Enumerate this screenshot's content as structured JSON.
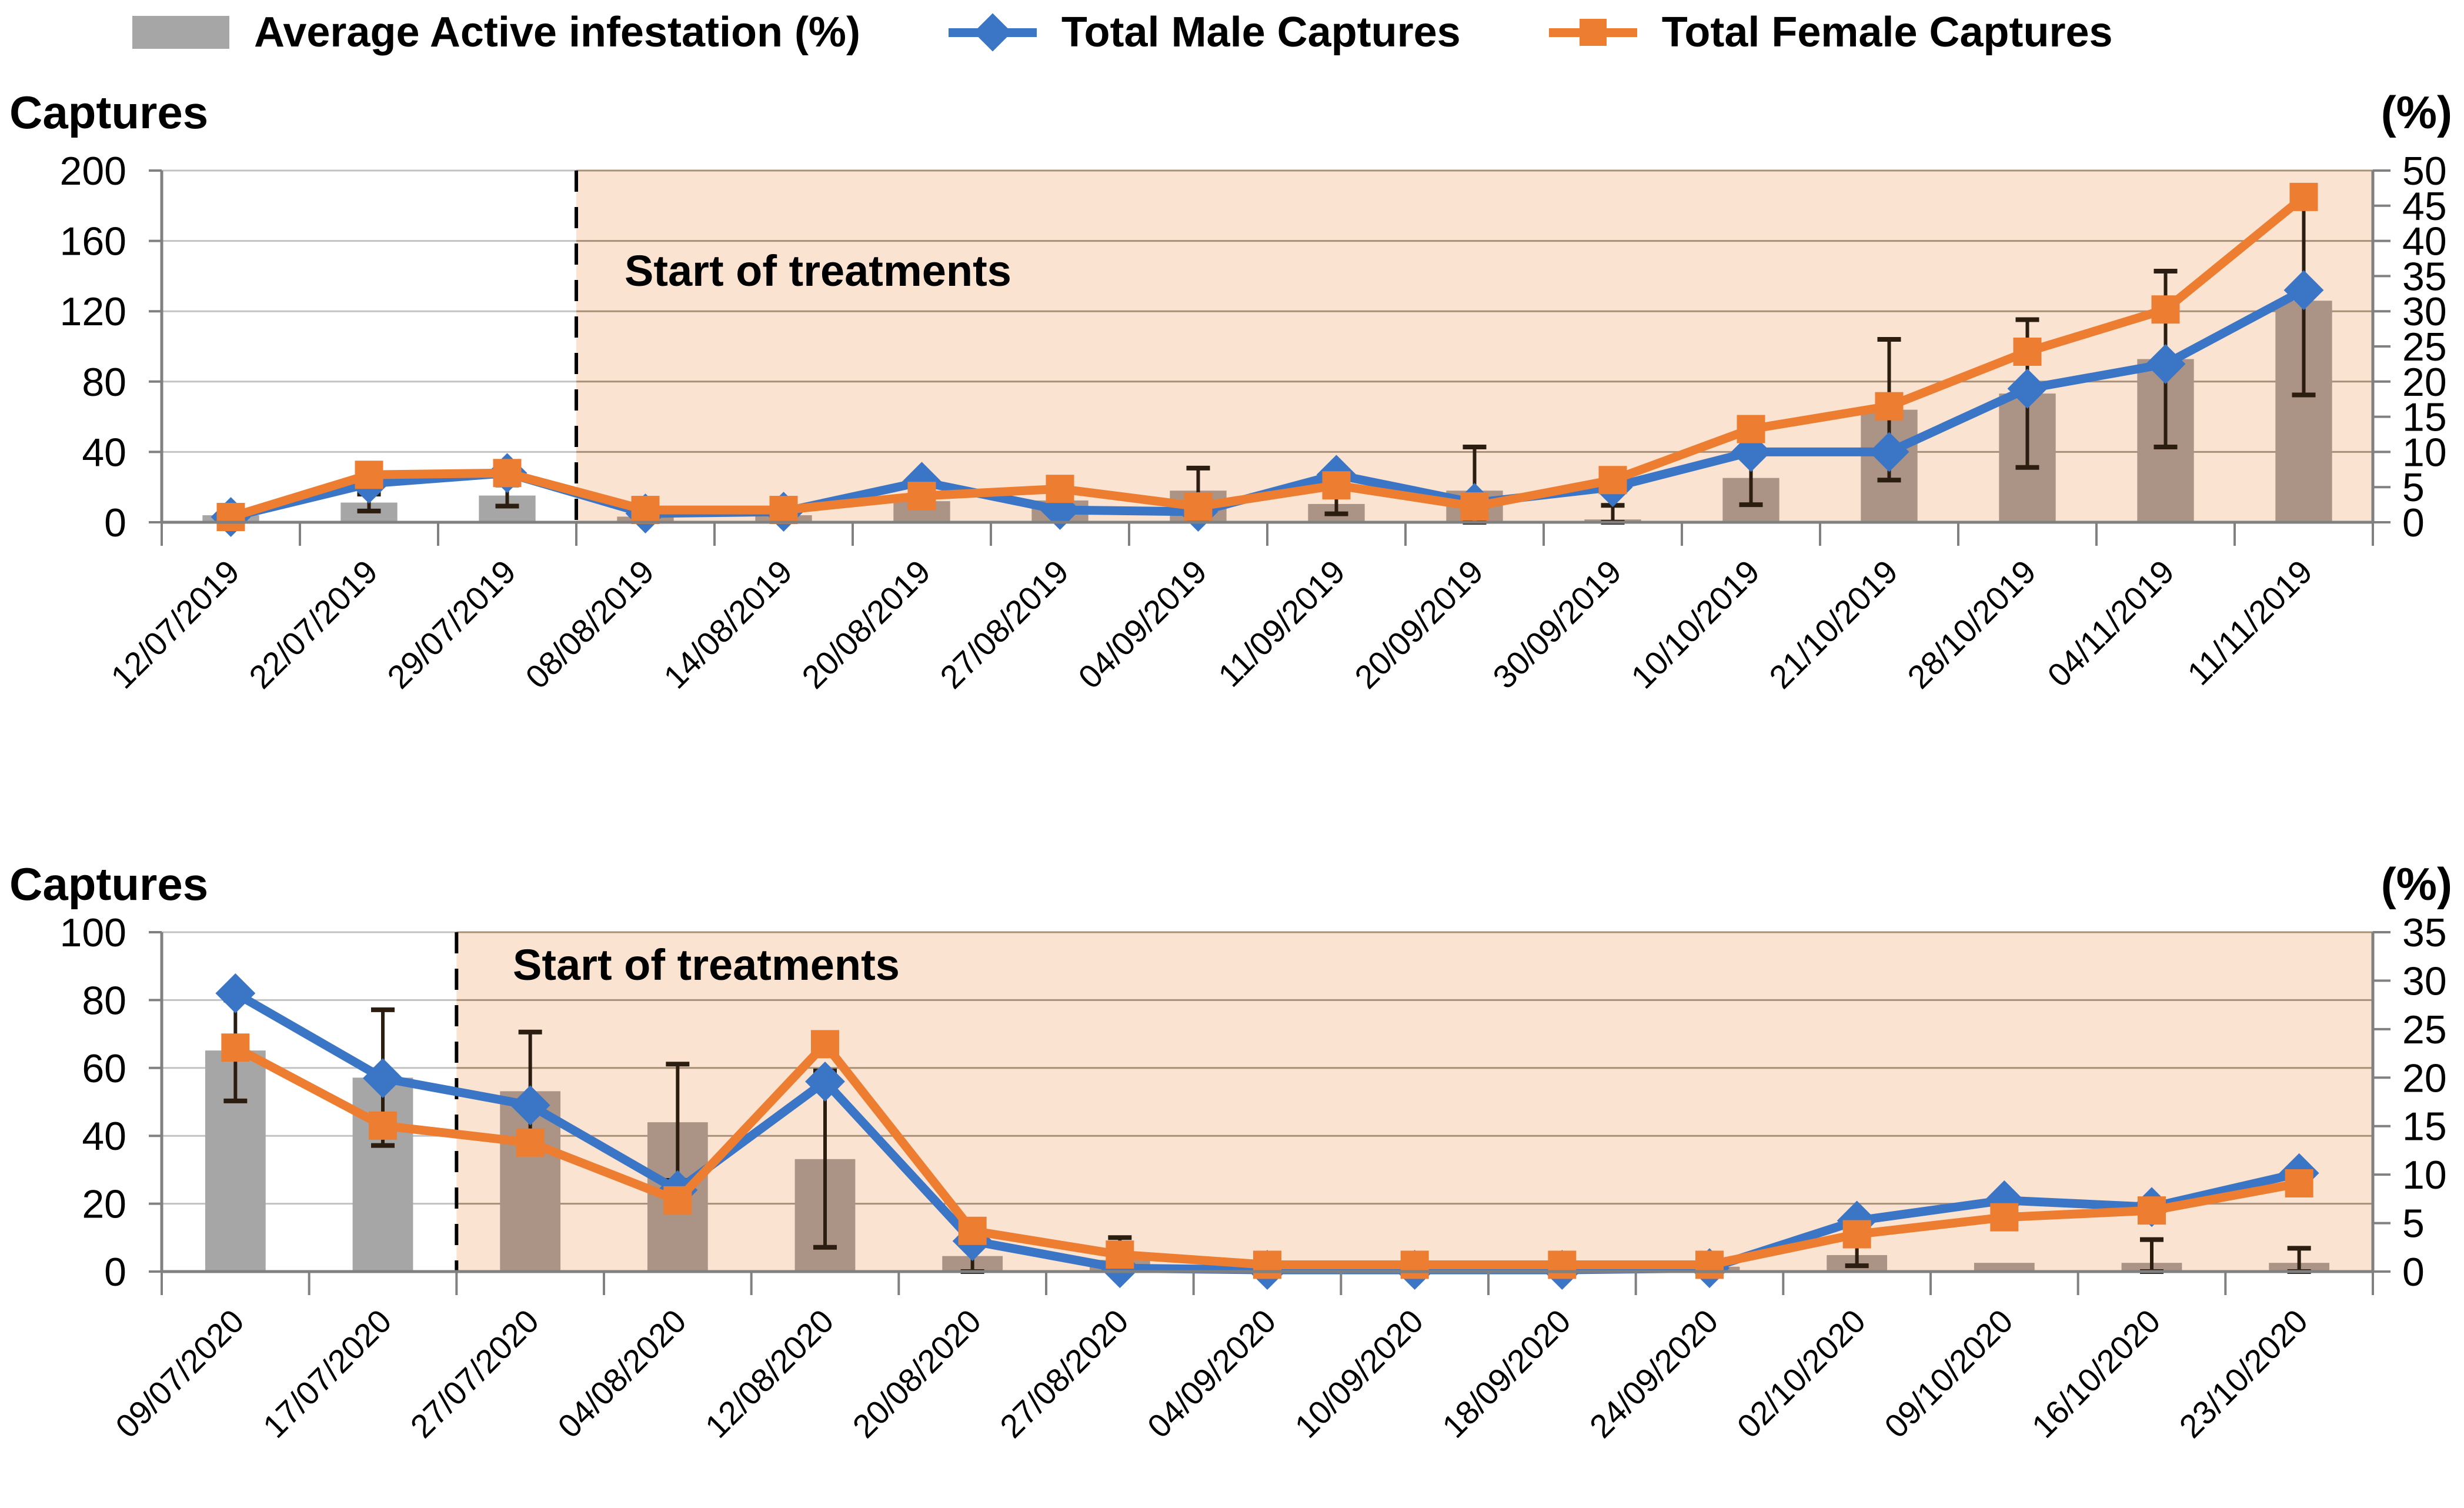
{
  "legend": {
    "items": [
      {
        "label": "Average Active infestation (%)",
        "swatch": "bar",
        "color": "#A6A6A6"
      },
      {
        "label": "Total Male Captures",
        "swatch": "line-diamond",
        "color": "#3B76C6"
      },
      {
        "label": "Total Female Captures",
        "swatch": "line-square",
        "color": "#ED7D31"
      }
    ]
  },
  "colors": {
    "bar_gray": "#A6A6A6",
    "bar_in_shade": "#AB9486",
    "male_blue": "#3B76C6",
    "female_orange": "#ED7D31",
    "shade_peach": "#FBE3D2",
    "gridline_plain": "#C3C3C3",
    "gridline_in_shade": "#A89078",
    "axis_line": "#808080",
    "error_bar": "#2B1D10",
    "dashed_line": "#000000"
  },
  "chart_data": [
    {
      "type": "bar+line combo",
      "left_axis": {
        "title": "Captures",
        "min": 0,
        "max": 200,
        "step": 40
      },
      "right_axis": {
        "title": "(%)",
        "min": 0,
        "max": 50,
        "step": 5
      },
      "annotation": "Start of treatments",
      "treatment_start_after_category": "29/07/2019",
      "categories": [
        "12/07/2019",
        "22/07/2019",
        "29/07/2019",
        "08/08/2019",
        "14/08/2019",
        "20/08/2019",
        "27/08/2019",
        "04/09/2019",
        "11/09/2019",
        "20/09/2019",
        "30/09/2019",
        "10/10/2019",
        "21/10/2019",
        "28/10/2019",
        "04/11/2019",
        "11/11/2019"
      ],
      "series": [
        {
          "name": "Average Active infestation (%)",
          "type": "bar",
          "axis": "right",
          "values": [
            1.0,
            2.8,
            3.8,
            0.8,
            1.0,
            3.0,
            3.1,
            4.5,
            2.6,
            4.5,
            0.4,
            6.3,
            16.0,
            18.3,
            23.2,
            31.5
          ],
          "err": [
            0,
            1.2,
            1.5,
            0.5,
            0,
            0,
            0,
            3.2,
            1.4,
            6.2,
            2.0,
            3.8,
            10.0,
            10.5,
            12.5,
            13.4
          ]
        },
        {
          "name": "Total Male Captures",
          "type": "line",
          "marker": "diamond",
          "axis": "left",
          "values": [
            3,
            22,
            28,
            5,
            6,
            23,
            7,
            6,
            27,
            11,
            20,
            40,
            40,
            76,
            90,
            132
          ]
        },
        {
          "name": "Total Female Captures",
          "type": "line",
          "marker": "square",
          "axis": "left",
          "values": [
            3,
            27,
            28,
            7,
            7,
            15,
            19,
            9,
            21,
            9,
            24,
            53,
            66,
            97,
            121,
            185
          ]
        }
      ]
    },
    {
      "type": "bar+line combo",
      "left_axis": {
        "title": "Captures",
        "min": 0,
        "max": 100,
        "step": 20
      },
      "right_axis": {
        "title": "(%)",
        "min": 0,
        "max": 35,
        "step": 5
      },
      "annotation": "Start of treatments",
      "treatment_start_after_category": "17/07/2020",
      "categories": [
        "09/07/2020",
        "17/07/2020",
        "27/07/2020",
        "04/08/2020",
        "12/08/2020",
        "20/08/2020",
        "27/08/2020",
        "04/09/2020",
        "10/09/2020",
        "18/09/2020",
        "24/09/2020",
        "02/10/2020",
        "09/10/2020",
        "16/10/2020",
        "23/10/2020"
      ],
      "series": [
        {
          "name": "Average Active infestation (%)",
          "type": "bar",
          "axis": "right",
          "values": [
            22.8,
            20.0,
            18.6,
            15.4,
            11.6,
            1.6,
            1.2,
            0.4,
            0.2,
            0.2,
            0.5,
            1.7,
            0.9,
            0.9,
            0.9
          ],
          "err": [
            5.2,
            7.0,
            6.1,
            6.0,
            9.1,
            2.1,
            2.3,
            0,
            0,
            0,
            1.4,
            1.1,
            0,
            2.4,
            1.5
          ]
        },
        {
          "name": "Total Male Captures",
          "type": "line",
          "marker": "diamond",
          "axis": "left",
          "values": [
            82,
            57,
            49,
            24,
            56,
            9,
            1,
            0.5,
            0.5,
            0.5,
            1,
            15,
            21,
            19,
            29
          ]
        },
        {
          "name": "Total Female Captures",
          "type": "line",
          "marker": "square",
          "axis": "left",
          "values": [
            66,
            43,
            38,
            21,
            67,
            12,
            5,
            2,
            2,
            2,
            2,
            11,
            16,
            18,
            26
          ]
        }
      ]
    }
  ]
}
